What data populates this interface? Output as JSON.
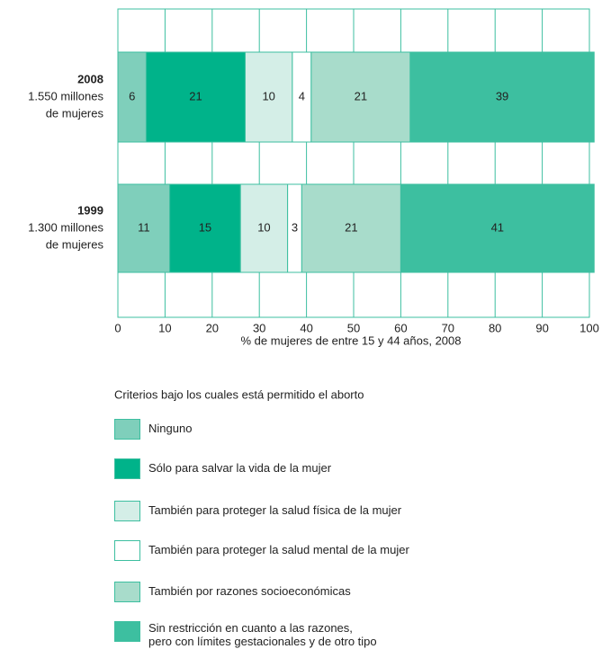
{
  "chart_data": {
    "type": "stacked_barh",
    "categories": [
      "2008",
      "1999"
    ],
    "category_sublabels": [
      [
        "1.550 millones",
        "de mujeres"
      ],
      [
        "1.300 millones",
        "de mujeres"
      ]
    ],
    "series": [
      {
        "name": "Ninguno",
        "color": "#7fcfbb",
        "values": [
          6,
          11
        ]
      },
      {
        "name": "Sólo para salvar la vida de la mujer",
        "color": "#00b38a",
        "values": [
          21,
          15
        ]
      },
      {
        "name": "También para proteger la salud física de la mujer",
        "color": "#d4eee7",
        "values": [
          10,
          10
        ]
      },
      {
        "name": "También para proteger la salud mental de la mujer",
        "color": "#ffffff",
        "values": [
          4,
          3
        ]
      },
      {
        "name": "También por razones socioeconómicas",
        "color": "#a8dccb",
        "values": [
          21,
          21
        ]
      },
      {
        "name": "Sin restricción en cuanto a las razones,\npero con límites gestacionales y de otro tipo",
        "color": "#3dbfa0",
        "values": [
          39,
          41
        ]
      }
    ],
    "xlim": [
      0,
      100
    ],
    "xticks": [
      0,
      10,
      20,
      30,
      40,
      50,
      60,
      70,
      80,
      90,
      100
    ],
    "xlabel": "% de mujeres de entre 15 y 44 años, 2008",
    "legend_title": "Criterios bajo los cuales está permitido el aborto",
    "grid": true,
    "border_color": "#3dbfa0"
  }
}
